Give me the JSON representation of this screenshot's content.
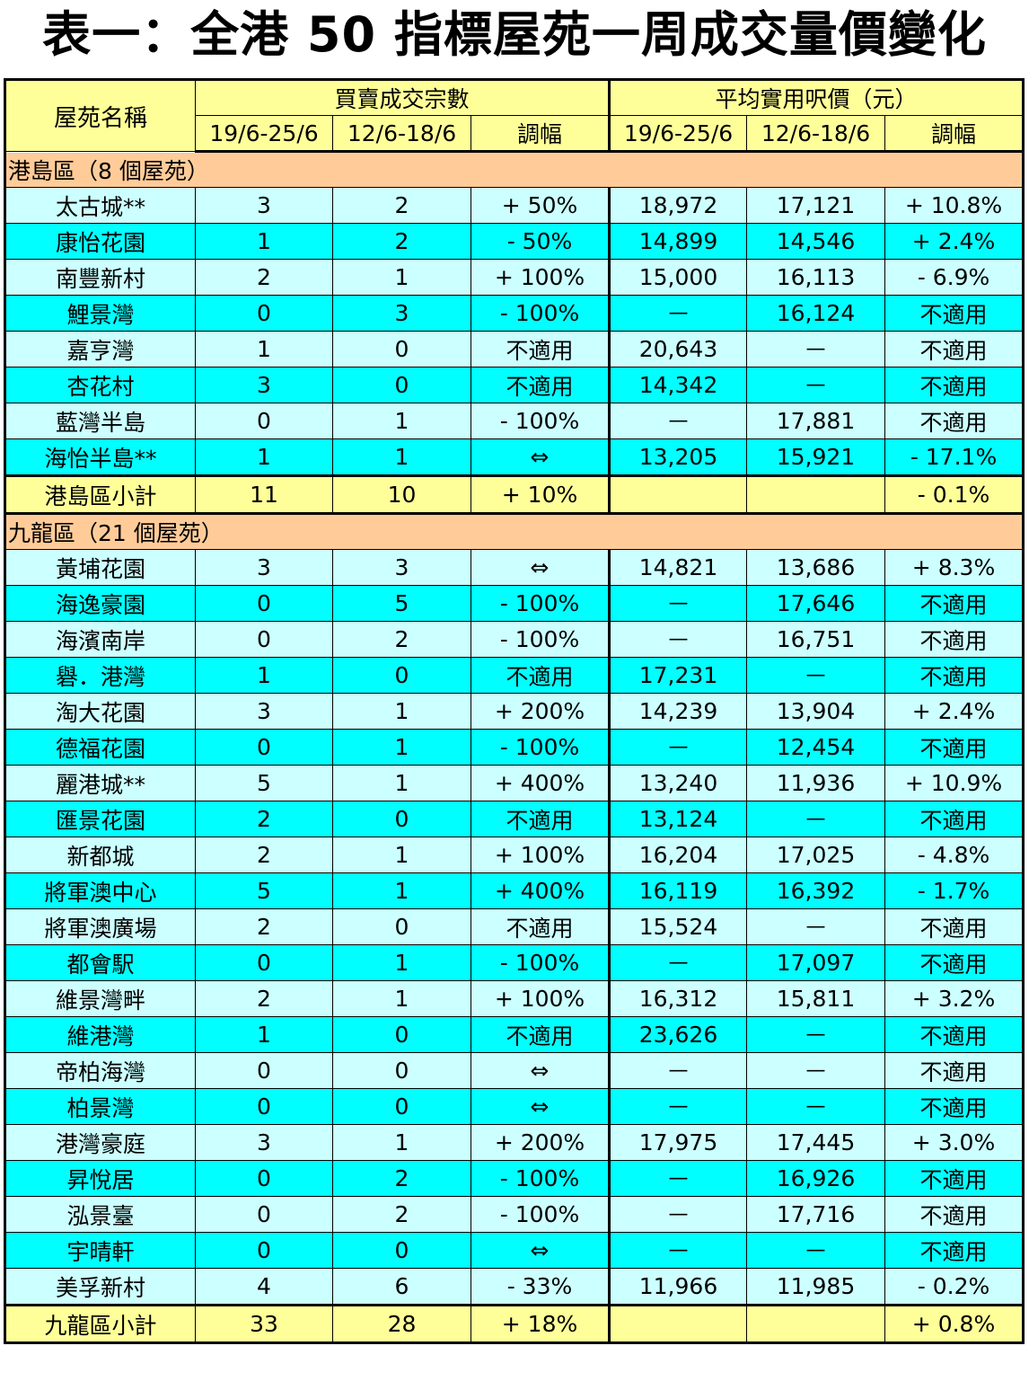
{
  "title": "表一：全港 50 指標屋苑一周成交量價變化",
  "header": {
    "estate_name": "屋苑名稱",
    "transactions_group": "買賣成交宗數",
    "price_group": "平均實用呎價（元）",
    "period_current": "19/6-25/6",
    "period_previous": "12/6-18/6",
    "change": "調幅"
  },
  "regions": [
    {
      "label": "港島區（8 個屋苑）",
      "rows": [
        {
          "name": "太古城**",
          "t_cur": "3",
          "t_prev": "2",
          "t_chg": "+ 50%",
          "p_cur": "18,972",
          "p_prev": "17,121",
          "p_chg": "+ 10.8%"
        },
        {
          "name": "康怡花園",
          "t_cur": "1",
          "t_prev": "2",
          "t_chg": "- 50%",
          "p_cur": "14,899",
          "p_prev": "14,546",
          "p_chg": "+ 2.4%"
        },
        {
          "name": "南豐新村",
          "t_cur": "2",
          "t_prev": "1",
          "t_chg": "+ 100%",
          "p_cur": "15,000",
          "p_prev": "16,113",
          "p_chg": "- 6.9%"
        },
        {
          "name": "鯉景灣",
          "t_cur": "0",
          "t_prev": "3",
          "t_chg": "- 100%",
          "p_cur": "—",
          "p_prev": "16,124",
          "p_chg": "不適用"
        },
        {
          "name": "嘉亨灣",
          "t_cur": "1",
          "t_prev": "0",
          "t_chg": "不適用",
          "p_cur": "20,643",
          "p_prev": "—",
          "p_chg": "不適用"
        },
        {
          "name": "杏花村",
          "t_cur": "3",
          "t_prev": "0",
          "t_chg": "不適用",
          "p_cur": "14,342",
          "p_prev": "—",
          "p_chg": "不適用"
        },
        {
          "name": "藍灣半島",
          "t_cur": "0",
          "t_prev": "1",
          "t_chg": "- 100%",
          "p_cur": "—",
          "p_prev": "17,881",
          "p_chg": "不適用"
        },
        {
          "name": "海怡半島**",
          "t_cur": "1",
          "t_prev": "1",
          "t_chg": "⇔",
          "p_cur": "13,205",
          "p_prev": "15,921",
          "p_chg": "- 17.1%"
        }
      ],
      "subtotal": {
        "name": "港島區小計",
        "t_cur": "11",
        "t_prev": "10",
        "t_chg": "+ 10%",
        "p_cur": "",
        "p_prev": "",
        "p_chg": "- 0.1%"
      }
    },
    {
      "label": "九龍區（21 個屋苑）",
      "rows": [
        {
          "name": "黃埔花園",
          "t_cur": "3",
          "t_prev": "3",
          "t_chg": "⇔",
          "p_cur": "14,821",
          "p_prev": "13,686",
          "p_chg": "+ 8.3%"
        },
        {
          "name": "海逸豪園",
          "t_cur": "0",
          "t_prev": "5",
          "t_chg": "- 100%",
          "p_cur": "—",
          "p_prev": "17,646",
          "p_chg": "不適用"
        },
        {
          "name": "海濱南岸",
          "t_cur": "0",
          "t_prev": "2",
          "t_chg": "- 100%",
          "p_cur": "—",
          "p_prev": "16,751",
          "p_chg": "不適用"
        },
        {
          "name": "礜．港灣",
          "t_cur": "1",
          "t_prev": "0",
          "t_chg": "不適用",
          "p_cur": "17,231",
          "p_prev": "—",
          "p_chg": "不適用"
        },
        {
          "name": "淘大花園",
          "t_cur": "3",
          "t_prev": "1",
          "t_chg": "+ 200%",
          "p_cur": "14,239",
          "p_prev": "13,904",
          "p_chg": "+ 2.4%"
        },
        {
          "name": "德福花園",
          "t_cur": "0",
          "t_prev": "1",
          "t_chg": "- 100%",
          "p_cur": "—",
          "p_prev": "12,454",
          "p_chg": "不適用"
        },
        {
          "name": "麗港城**",
          "t_cur": "5",
          "t_prev": "1",
          "t_chg": "+ 400%",
          "p_cur": "13,240",
          "p_prev": "11,936",
          "p_chg": "+ 10.9%"
        },
        {
          "name": "匯景花園",
          "t_cur": "2",
          "t_prev": "0",
          "t_chg": "不適用",
          "p_cur": "13,124",
          "p_prev": "—",
          "p_chg": "不適用"
        },
        {
          "name": "新都城",
          "t_cur": "2",
          "t_prev": "1",
          "t_chg": "+ 100%",
          "p_cur": "16,204",
          "p_prev": "17,025",
          "p_chg": "- 4.8%"
        },
        {
          "name": "將軍澳中心",
          "t_cur": "5",
          "t_prev": "1",
          "t_chg": "+ 400%",
          "p_cur": "16,119",
          "p_prev": "16,392",
          "p_chg": "- 1.7%"
        },
        {
          "name": "將軍澳廣場",
          "t_cur": "2",
          "t_prev": "0",
          "t_chg": "不適用",
          "p_cur": "15,524",
          "p_prev": "—",
          "p_chg": "不適用"
        },
        {
          "name": "都會駅",
          "t_cur": "0",
          "t_prev": "1",
          "t_chg": "- 100%",
          "p_cur": "—",
          "p_prev": "17,097",
          "p_chg": "不適用"
        },
        {
          "name": "維景灣畔",
          "t_cur": "2",
          "t_prev": "1",
          "t_chg": "+ 100%",
          "p_cur": "16,312",
          "p_prev": "15,811",
          "p_chg": "+ 3.2%"
        },
        {
          "name": "維港灣",
          "t_cur": "1",
          "t_prev": "0",
          "t_chg": "不適用",
          "p_cur": "23,626",
          "p_prev": "—",
          "p_chg": "不適用"
        },
        {
          "name": "帝柏海灣",
          "t_cur": "0",
          "t_prev": "0",
          "t_chg": "⇔",
          "p_cur": "—",
          "p_prev": "—",
          "p_chg": "不適用"
        },
        {
          "name": "柏景灣",
          "t_cur": "0",
          "t_prev": "0",
          "t_chg": "⇔",
          "p_cur": "—",
          "p_prev": "—",
          "p_chg": "不適用"
        },
        {
          "name": "港灣豪庭",
          "t_cur": "3",
          "t_prev": "1",
          "t_chg": "+ 200%",
          "p_cur": "17,975",
          "p_prev": "17,445",
          "p_chg": "+ 3.0%"
        },
        {
          "name": "昇悅居",
          "t_cur": "0",
          "t_prev": "2",
          "t_chg": "- 100%",
          "p_cur": "—",
          "p_prev": "16,926",
          "p_chg": "不適用"
        },
        {
          "name": "泓景臺",
          "t_cur": "0",
          "t_prev": "2",
          "t_chg": "- 100%",
          "p_cur": "—",
          "p_prev": "17,716",
          "p_chg": "不適用"
        },
        {
          "name": "宇晴軒",
          "t_cur": "0",
          "t_prev": "0",
          "t_chg": "⇔",
          "p_cur": "—",
          "p_prev": "—",
          "p_chg": "不適用"
        },
        {
          "name": "美孚新村",
          "t_cur": "4",
          "t_prev": "6",
          "t_chg": "- 33%",
          "p_cur": "11,966",
          "p_prev": "11,985",
          "p_chg": "- 0.2%"
        }
      ],
      "subtotal": {
        "name": "九龍區小計",
        "t_cur": "33",
        "t_prev": "28",
        "t_chg": "+ 18%",
        "p_cur": "",
        "p_prev": "",
        "p_chg": "+ 0.8%"
      }
    }
  ]
}
